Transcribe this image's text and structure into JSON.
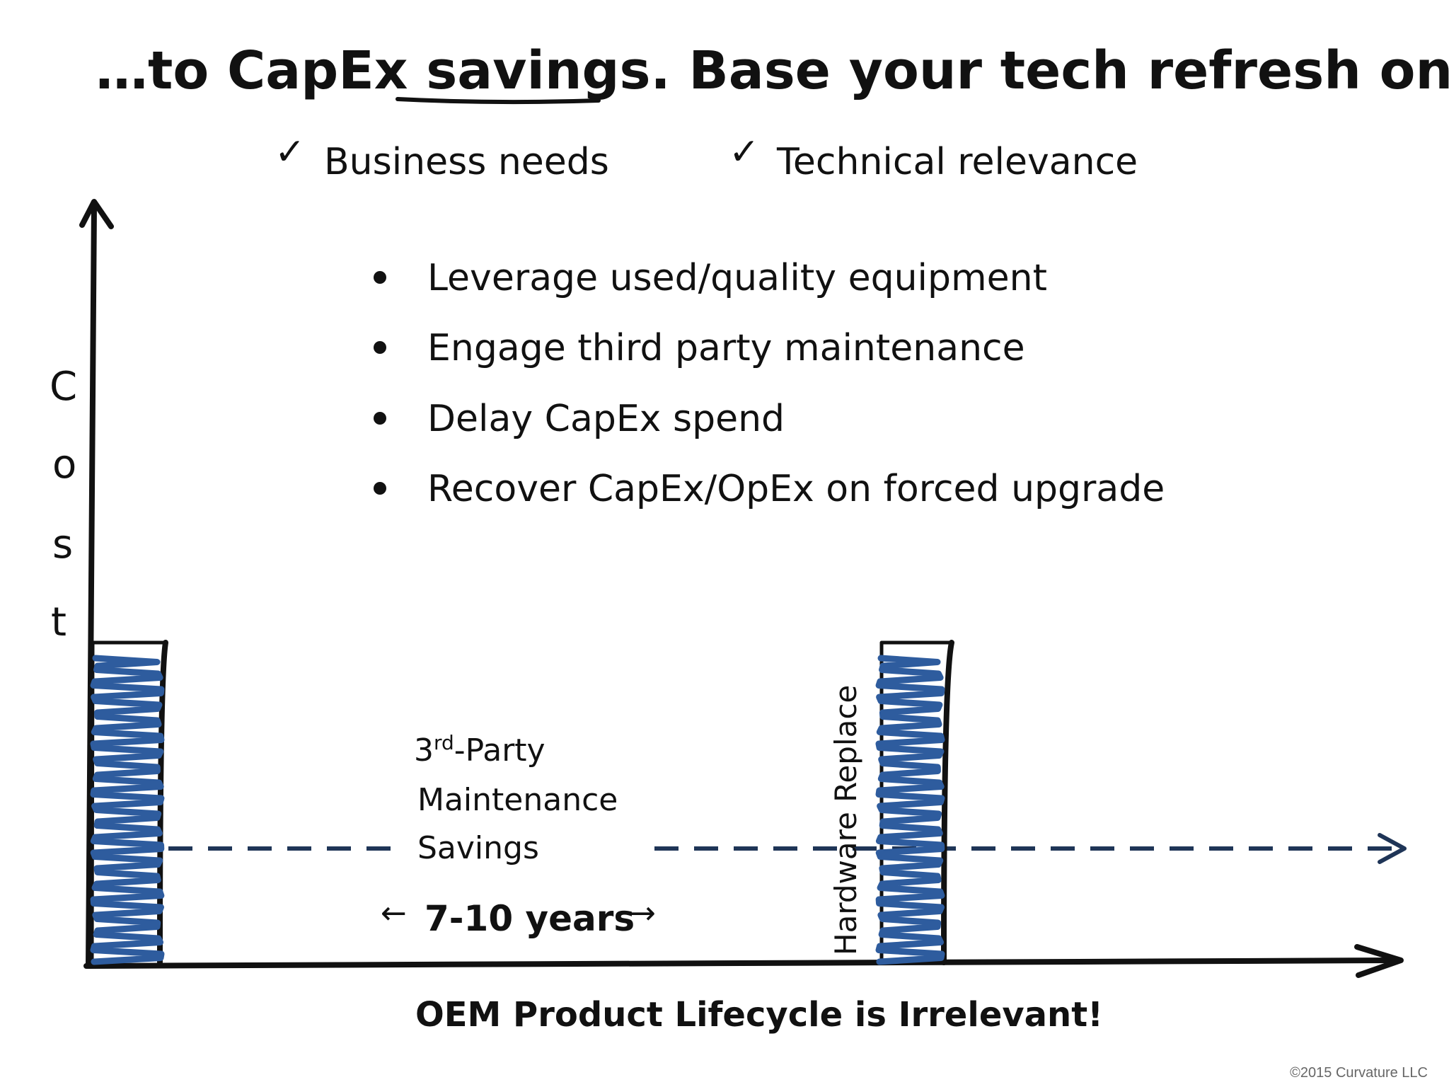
{
  "title": {
    "prefix": "…to CapEx ",
    "underlined": "savings",
    "suffix": ". Base your tech refresh on:"
  },
  "criteria": [
    {
      "mark": "✓",
      "label": "Business needs"
    },
    {
      "mark": "✓",
      "label": "Technical relevance"
    }
  ],
  "bullets": [
    "Leverage used/quality equipment",
    "Engage third party maintenance",
    "Delay CapEx spend",
    "Recover CapEx/OpEx on forced upgrade"
  ],
  "axis": {
    "y_letters": [
      "C",
      "o",
      "s",
      "t"
    ]
  },
  "savings_label": {
    "line1_prefix": "3",
    "line1_sup": "rd",
    "line1_suffix": "-Party",
    "line2": "Maintenance",
    "line3": "Savings"
  },
  "duration": {
    "left_arrow": "←",
    "label": "7-10 years",
    "right_arrow": "→"
  },
  "hardware_label": "Hardware Replace",
  "footer": "OEM Product Lifecycle is Irrelevant!",
  "copyright": "©2015 Curvature LLC",
  "colors": {
    "ink": "#111111",
    "scribble": "#2e5c9e",
    "dashed_line": "#1f3557"
  }
}
